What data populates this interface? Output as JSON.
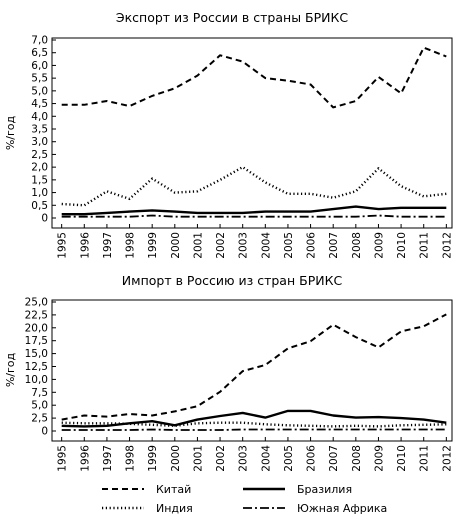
{
  "chart_data": [
    {
      "type": "line",
      "title": "Экспорт из России в страны БРИКС",
      "ylabel": "%/год",
      "xlabel": "",
      "ylim": [
        0,
        7.0
      ],
      "yticks": [
        "0",
        "0,5",
        "1,0",
        "1,5",
        "2,0",
        "2,5",
        "3,0",
        "3,5",
        "4,0",
        "4,5",
        "5,0",
        "5,5",
        "6,0",
        "6,5",
        "7,0"
      ],
      "grid": false,
      "x": [
        "1995",
        "1996",
        "1997",
        "1998",
        "1999",
        "2000",
        "2001",
        "2002",
        "2003",
        "2004",
        "2005",
        "2006",
        "2007",
        "2008",
        "2009",
        "2010",
        "2011",
        "2012"
      ],
      "series": [
        {
          "name": "Китай",
          "style": "dashed",
          "values": [
            4.45,
            4.45,
            4.6,
            4.4,
            4.8,
            5.1,
            5.6,
            6.4,
            6.15,
            5.5,
            5.4,
            5.25,
            4.35,
            4.6,
            5.55,
            4.9,
            6.7,
            6.35
          ]
        },
        {
          "name": "Индия",
          "style": "dotted",
          "values": [
            0.55,
            0.5,
            1.05,
            0.75,
            1.55,
            1.0,
            1.05,
            1.5,
            2.0,
            1.4,
            0.95,
            0.95,
            0.8,
            1.05,
            1.95,
            1.25,
            0.85,
            0.95
          ]
        },
        {
          "name": "Бразилия",
          "style": "solid",
          "values": [
            0.15,
            0.15,
            0.2,
            0.25,
            0.3,
            0.25,
            0.2,
            0.2,
            0.2,
            0.25,
            0.25,
            0.25,
            0.35,
            0.45,
            0.35,
            0.4,
            0.4,
            0.4
          ]
        },
        {
          "name": "Южная Африка",
          "style": "dashdot",
          "values": [
            0.05,
            0.05,
            0.05,
            0.05,
            0.1,
            0.05,
            0.05,
            0.05,
            0.05,
            0.05,
            0.05,
            0.05,
            0.05,
            0.05,
            0.1,
            0.05,
            0.05,
            0.05
          ]
        }
      ]
    },
    {
      "type": "line",
      "title": "Импорт в Россию из стран БРИКС",
      "ylabel": "%/год",
      "xlabel": "",
      "ylim": [
        0,
        25.0
      ],
      "yticks": [
        "0",
        "2,5",
        "5,0",
        "7,5",
        "10,0",
        "12,5",
        "15,0",
        "17,5",
        "20,0",
        "22,5",
        "25,0"
      ],
      "grid": false,
      "x": [
        "1995",
        "1996",
        "1997",
        "1998",
        "1999",
        "2000",
        "2001",
        "2002",
        "2003",
        "2004",
        "2005",
        "2006",
        "2007",
        "2008",
        "2009",
        "2010",
        "2011",
        "2012"
      ],
      "series": [
        {
          "name": "Китай",
          "style": "dashed",
          "values": [
            2.2,
            3.0,
            2.8,
            3.3,
            3.0,
            3.8,
            4.8,
            7.6,
            11.6,
            12.8,
            16.0,
            17.4,
            20.6,
            18.2,
            16.2,
            19.3,
            20.3,
            22.6
          ]
        },
        {
          "name": "Индия",
          "style": "dotted",
          "values": [
            1.6,
            1.5,
            1.5,
            1.4,
            1.2,
            1.0,
            1.5,
            1.6,
            1.6,
            1.3,
            1.1,
            1.0,
            0.9,
            1.0,
            0.9,
            1.1,
            1.2,
            1.3
          ]
        },
        {
          "name": "Бразилия",
          "style": "solid",
          "values": [
            1.0,
            0.9,
            1.0,
            1.5,
            1.9,
            1.1,
            2.2,
            2.9,
            3.5,
            2.6,
            3.9,
            3.9,
            3.0,
            2.6,
            2.7,
            2.5,
            2.2,
            1.6
          ]
        },
        {
          "name": "Южная Африка",
          "style": "dashdot",
          "values": [
            0.2,
            0.2,
            0.2,
            0.2,
            0.3,
            0.2,
            0.2,
            0.2,
            0.3,
            0.3,
            0.3,
            0.3,
            0.3,
            0.3,
            0.3,
            0.3,
            0.3,
            0.3
          ]
        }
      ]
    }
  ],
  "legend": {
    "position": "bottom",
    "items": [
      {
        "label": "Китай",
        "style": "dashed"
      },
      {
        "label": "Бразилия",
        "style": "solid"
      },
      {
        "label": "Индия",
        "style": "dotted"
      },
      {
        "label": "Южная Африка",
        "style": "dashdot"
      }
    ]
  }
}
